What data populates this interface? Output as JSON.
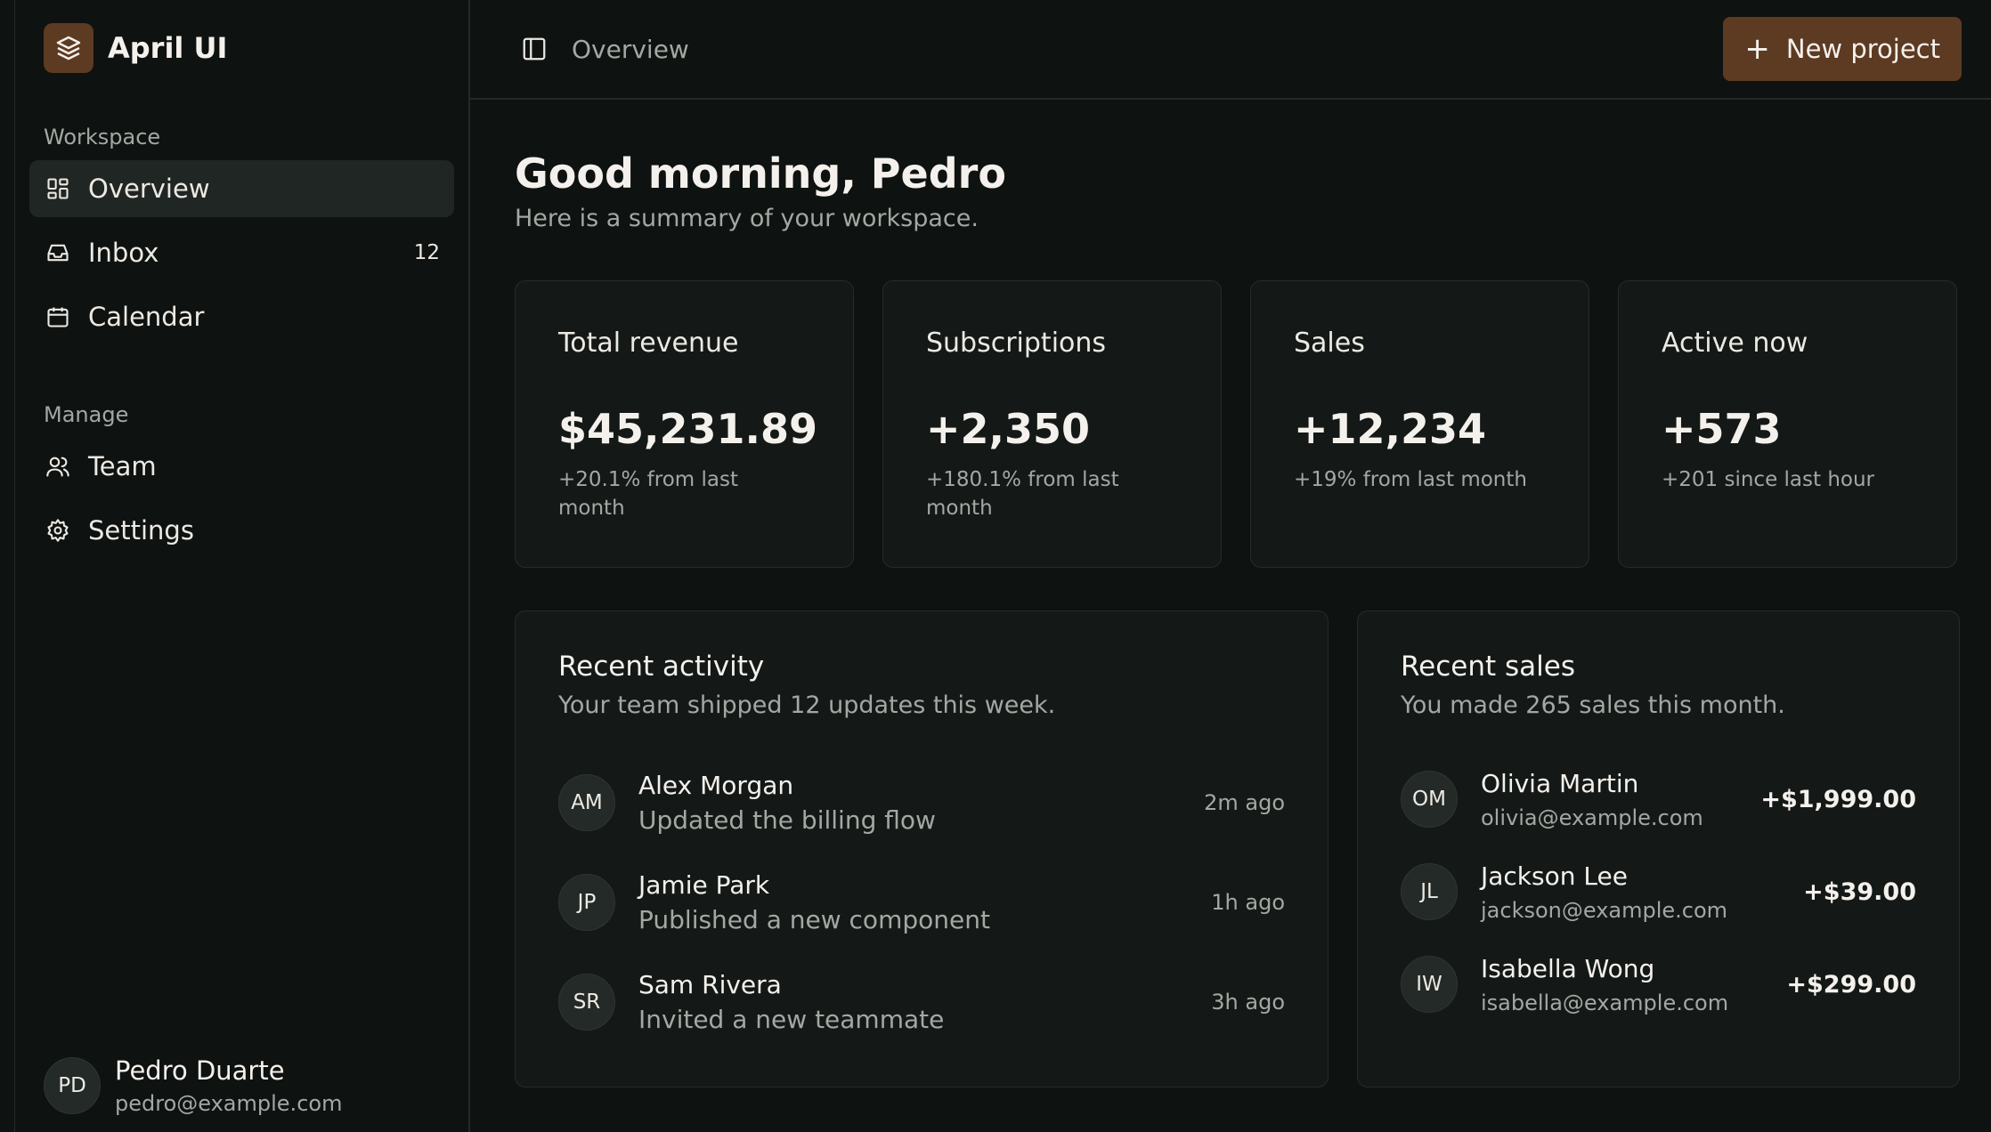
{
  "brand": {
    "name": "April UI",
    "icon": "layers-icon"
  },
  "sidebar": {
    "workspace_label": "Workspace",
    "manage_label": "Manage",
    "workspace_items": [
      {
        "label": "Overview",
        "icon": "dashboard-icon",
        "active": true
      },
      {
        "label": "Inbox",
        "icon": "inbox-icon",
        "count": "12"
      },
      {
        "label": "Calendar",
        "icon": "calendar-icon"
      }
    ],
    "manage_items": [
      {
        "label": "Team",
        "icon": "users-icon"
      },
      {
        "label": "Settings",
        "icon": "gear-icon"
      }
    ]
  },
  "user": {
    "initials": "PD",
    "name": "Pedro Duarte",
    "email": "pedro@example.com"
  },
  "topbar": {
    "breadcrumb": "Overview",
    "new_project_label": "New project"
  },
  "header": {
    "greeting": "Good morning, Pedro",
    "subtitle": "Here is a summary of your workspace."
  },
  "stats": [
    {
      "title": "Total revenue",
      "value": "$45,231.89",
      "change": "+20.1% from last month"
    },
    {
      "title": "Subscriptions",
      "value": "+2,350",
      "change": "+180.1% from last month"
    },
    {
      "title": "Sales",
      "value": "+12,234",
      "change": "+19% from last month"
    },
    {
      "title": "Active now",
      "value": "+573",
      "change": "+201 since last hour"
    }
  ],
  "activity": {
    "title": "Recent activity",
    "subtitle": "Your team shipped 12 updates this week.",
    "items": [
      {
        "initials": "AM",
        "name": "Alex Morgan",
        "desc": "Updated the billing flow",
        "time": "2m ago"
      },
      {
        "initials": "JP",
        "name": "Jamie Park",
        "desc": "Published a new component",
        "time": "1h ago"
      },
      {
        "initials": "SR",
        "name": "Sam Rivera",
        "desc": "Invited a new teammate",
        "time": "3h ago"
      }
    ]
  },
  "sales": {
    "title": "Recent sales",
    "subtitle": "You made 265 sales this month.",
    "items": [
      {
        "initials": "OM",
        "name": "Olivia Martin",
        "email": "olivia@example.com",
        "amount": "+$1,999.00"
      },
      {
        "initials": "JL",
        "name": "Jackson Lee",
        "email": "jackson@example.com",
        "amount": "+$39.00"
      },
      {
        "initials": "IW",
        "name": "Isabella Wong",
        "email": "isabella@example.com",
        "amount": "+$299.00"
      }
    ]
  },
  "colors": {
    "accent": "#5d3a22",
    "background": "#0e1210",
    "card": "#141917"
  }
}
